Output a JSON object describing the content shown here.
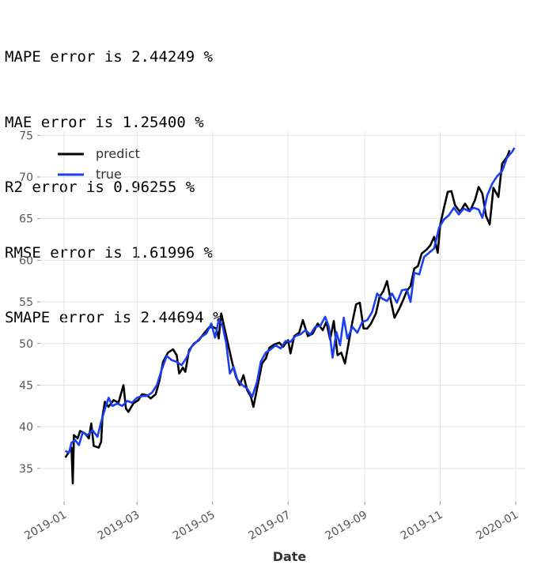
{
  "metrics": [
    "MAPE error is 2.44249 %",
    "MAE error is 1.25400 %",
    "R2 error is 0.96255 %",
    "RMSE error is 1.61996 %",
    "SMAPE error is 2.44694 %"
  ],
  "chart_data": {
    "type": "line",
    "xlabel": "Date",
    "ylabel": "",
    "title": "",
    "xlim": [
      "2019-01-01",
      "2020-01-01"
    ],
    "ylim": [
      31,
      75.5
    ],
    "yticks": [
      35,
      40,
      45,
      50,
      55,
      60,
      65,
      70,
      75
    ],
    "xticks": [
      "2019-01",
      "2019-03",
      "2019-05",
      "2019-07",
      "2019-09",
      "2019-11",
      "2020-01"
    ],
    "grid": true,
    "legend_position": "top-left",
    "series": [
      {
        "name": "predict",
        "color": "#000000",
        "points": [
          [
            "2019-01-02",
            36.3
          ],
          [
            "2019-01-05",
            37.0
          ],
          [
            "2019-01-07",
            37.5
          ],
          [
            "2019-01-08",
            33.2
          ],
          [
            "2019-01-09",
            39.0
          ],
          [
            "2019-01-12",
            38.6
          ],
          [
            "2019-01-14",
            39.5
          ],
          [
            "2019-01-18",
            39.2
          ],
          [
            "2019-01-21",
            38.6
          ],
          [
            "2019-01-23",
            40.4
          ],
          [
            "2019-01-25",
            37.7
          ],
          [
            "2019-01-29",
            37.5
          ],
          [
            "2019-01-31",
            38.2
          ],
          [
            "2019-02-01",
            41.2
          ],
          [
            "2019-02-03",
            43.0
          ],
          [
            "2019-02-06",
            42.4
          ],
          [
            "2019-02-10",
            43.2
          ],
          [
            "2019-02-14",
            42.9
          ],
          [
            "2019-02-18",
            45.0
          ],
          [
            "2019-02-20",
            42.2
          ],
          [
            "2019-02-22",
            41.8
          ],
          [
            "2019-02-26",
            42.8
          ],
          [
            "2019-03-02",
            43.2
          ],
          [
            "2019-03-05",
            43.9
          ],
          [
            "2019-03-09",
            43.8
          ],
          [
            "2019-03-12",
            43.4
          ],
          [
            "2019-03-16",
            43.9
          ],
          [
            "2019-03-19",
            45.5
          ],
          [
            "2019-03-22",
            47.8
          ],
          [
            "2019-03-26",
            48.9
          ],
          [
            "2019-03-30",
            49.3
          ],
          [
            "2019-04-02",
            48.6
          ],
          [
            "2019-04-04",
            46.4
          ],
          [
            "2019-04-07",
            47.1
          ],
          [
            "2019-04-09",
            46.6
          ],
          [
            "2019-04-12",
            49.2
          ],
          [
            "2019-04-16",
            50.0
          ],
          [
            "2019-04-20",
            50.4
          ],
          [
            "2019-04-24",
            51.2
          ],
          [
            "2019-04-28",
            51.9
          ],
          [
            "2019-05-01",
            52.0
          ],
          [
            "2019-05-04",
            51.8
          ],
          [
            "2019-05-06",
            50.6
          ],
          [
            "2019-05-08",
            53.6
          ],
          [
            "2019-05-11",
            51.6
          ],
          [
            "2019-05-14",
            49.6
          ],
          [
            "2019-05-17",
            47.6
          ],
          [
            "2019-05-20",
            46.0
          ],
          [
            "2019-05-23",
            45.0
          ],
          [
            "2019-05-26",
            46.2
          ],
          [
            "2019-05-29",
            44.4
          ],
          [
            "2019-06-01",
            43.6
          ],
          [
            "2019-06-03",
            42.4
          ],
          [
            "2019-06-06",
            44.6
          ],
          [
            "2019-06-10",
            47.6
          ],
          [
            "2019-06-13",
            48.2
          ],
          [
            "2019-06-16",
            49.5
          ],
          [
            "2019-06-20",
            49.9
          ],
          [
            "2019-06-24",
            50.1
          ],
          [
            "2019-06-27",
            49.6
          ],
          [
            "2019-07-01",
            50.4
          ],
          [
            "2019-07-03",
            48.8
          ],
          [
            "2019-07-06",
            50.9
          ],
          [
            "2019-07-10",
            51.3
          ],
          [
            "2019-07-13",
            52.8
          ],
          [
            "2019-07-17",
            50.9
          ],
          [
            "2019-07-21",
            51.2
          ],
          [
            "2019-07-25",
            52.4
          ],
          [
            "2019-07-29",
            51.6
          ],
          [
            "2019-08-01",
            52.6
          ],
          [
            "2019-08-04",
            50.5
          ],
          [
            "2019-08-07",
            52.7
          ],
          [
            "2019-08-10",
            48.6
          ],
          [
            "2019-08-13",
            48.9
          ],
          [
            "2019-08-16",
            47.6
          ],
          [
            "2019-08-19",
            50.1
          ],
          [
            "2019-08-22",
            52.6
          ],
          [
            "2019-08-25",
            54.7
          ],
          [
            "2019-08-28",
            54.9
          ],
          [
            "2019-08-31",
            51.8
          ],
          [
            "2019-09-03",
            51.8
          ],
          [
            "2019-09-06",
            52.4
          ],
          [
            "2019-09-10",
            53.6
          ],
          [
            "2019-09-13",
            55.6
          ],
          [
            "2019-09-16",
            56.3
          ],
          [
            "2019-09-19",
            57.5
          ],
          [
            "2019-09-22",
            55.2
          ],
          [
            "2019-09-25",
            53.1
          ],
          [
            "2019-09-29",
            54.2
          ],
          [
            "2019-10-02",
            55.2
          ],
          [
            "2019-10-05",
            56.3
          ],
          [
            "2019-10-08",
            56.9
          ],
          [
            "2019-10-11",
            59.0
          ],
          [
            "2019-10-14",
            59.3
          ],
          [
            "2019-10-17",
            60.8
          ],
          [
            "2019-10-21",
            61.3
          ],
          [
            "2019-10-24",
            61.8
          ],
          [
            "2019-10-27",
            62.8
          ],
          [
            "2019-10-30",
            60.9
          ],
          [
            "2019-11-01",
            64.3
          ],
          [
            "2019-11-04",
            66.3
          ],
          [
            "2019-11-07",
            68.2
          ],
          [
            "2019-11-10",
            68.3
          ],
          [
            "2019-11-13",
            66.6
          ],
          [
            "2019-11-17",
            65.8
          ],
          [
            "2019-11-21",
            66.8
          ],
          [
            "2019-11-25",
            65.9
          ],
          [
            "2019-11-29",
            67.2
          ],
          [
            "2019-12-02",
            68.8
          ],
          [
            "2019-12-05",
            68.0
          ],
          [
            "2019-12-08",
            65.3
          ],
          [
            "2019-12-11",
            64.3
          ],
          [
            "2019-12-14",
            68.7
          ],
          [
            "2019-12-18",
            67.6
          ],
          [
            "2019-12-21",
            71.6
          ],
          [
            "2019-12-25",
            72.4
          ],
          [
            "2019-12-27",
            73.2
          ]
        ]
      },
      {
        "name": "true",
        "color": "#1a3ff0",
        "points": [
          [
            "2019-01-02",
            37.1
          ],
          [
            "2019-01-05",
            36.9
          ],
          [
            "2019-01-07",
            38.1
          ],
          [
            "2019-01-10",
            38.4
          ],
          [
            "2019-01-13",
            37.8
          ],
          [
            "2019-01-16",
            39.3
          ],
          [
            "2019-01-20",
            39.0
          ],
          [
            "2019-01-24",
            39.6
          ],
          [
            "2019-01-28",
            38.8
          ],
          [
            "2019-01-31",
            40.6
          ],
          [
            "2019-02-03",
            42.1
          ],
          [
            "2019-02-06",
            43.5
          ],
          [
            "2019-02-09",
            42.5
          ],
          [
            "2019-02-13",
            42.8
          ],
          [
            "2019-02-17",
            42.5
          ],
          [
            "2019-02-21",
            43.1
          ],
          [
            "2019-02-25",
            42.9
          ],
          [
            "2019-03-01",
            43.5
          ],
          [
            "2019-03-05",
            43.7
          ],
          [
            "2019-03-09",
            43.7
          ],
          [
            "2019-03-13",
            44.1
          ],
          [
            "2019-03-17",
            45.0
          ],
          [
            "2019-03-21",
            46.9
          ],
          [
            "2019-03-25",
            48.5
          ],
          [
            "2019-03-29",
            48.0
          ],
          [
            "2019-04-02",
            47.8
          ],
          [
            "2019-04-06",
            47.4
          ],
          [
            "2019-04-10",
            48.3
          ],
          [
            "2019-04-14",
            49.6
          ],
          [
            "2019-04-18",
            50.2
          ],
          [
            "2019-04-22",
            50.8
          ],
          [
            "2019-04-26",
            51.2
          ],
          [
            "2019-04-30",
            52.4
          ],
          [
            "2019-05-03",
            50.7
          ],
          [
            "2019-05-06",
            52.8
          ],
          [
            "2019-05-09",
            52.2
          ],
          [
            "2019-05-12",
            50.1
          ],
          [
            "2019-05-15",
            46.4
          ],
          [
            "2019-05-18",
            47.2
          ],
          [
            "2019-05-21",
            45.7
          ],
          [
            "2019-05-25",
            45.0
          ],
          [
            "2019-05-29",
            44.6
          ],
          [
            "2019-06-02",
            43.6
          ],
          [
            "2019-06-06",
            45.4
          ],
          [
            "2019-06-09",
            47.8
          ],
          [
            "2019-06-13",
            48.9
          ],
          [
            "2019-06-17",
            49.3
          ],
          [
            "2019-06-21",
            49.8
          ],
          [
            "2019-06-25",
            49.4
          ],
          [
            "2019-06-29",
            50.3
          ],
          [
            "2019-07-03",
            50.2
          ],
          [
            "2019-07-07",
            50.9
          ],
          [
            "2019-07-11",
            51.1
          ],
          [
            "2019-07-15",
            51.6
          ],
          [
            "2019-07-19",
            51.1
          ],
          [
            "2019-07-23",
            52.0
          ],
          [
            "2019-07-27",
            52.1
          ],
          [
            "2019-07-31",
            53.2
          ],
          [
            "2019-08-03",
            52.0
          ],
          [
            "2019-08-06",
            48.3
          ],
          [
            "2019-08-09",
            51.4
          ],
          [
            "2019-08-12",
            49.8
          ],
          [
            "2019-08-15",
            53.1
          ],
          [
            "2019-08-18",
            50.6
          ],
          [
            "2019-08-22",
            52.0
          ],
          [
            "2019-08-26",
            51.3
          ],
          [
            "2019-08-30",
            52.6
          ],
          [
            "2019-09-03",
            52.8
          ],
          [
            "2019-09-07",
            53.8
          ],
          [
            "2019-09-11",
            56.0
          ],
          [
            "2019-09-15",
            55.4
          ],
          [
            "2019-09-19",
            55.1
          ],
          [
            "2019-09-23",
            56.0
          ],
          [
            "2019-09-27",
            54.9
          ],
          [
            "2019-10-01",
            56.4
          ],
          [
            "2019-10-05",
            56.5
          ],
          [
            "2019-10-08",
            55.0
          ],
          [
            "2019-10-11",
            58.5
          ],
          [
            "2019-10-15",
            58.3
          ],
          [
            "2019-10-19",
            60.4
          ],
          [
            "2019-10-23",
            60.9
          ],
          [
            "2019-10-27",
            61.4
          ],
          [
            "2019-10-31",
            63.9
          ],
          [
            "2019-11-04",
            64.9
          ],
          [
            "2019-11-08",
            65.4
          ],
          [
            "2019-11-12",
            66.3
          ],
          [
            "2019-11-16",
            65.5
          ],
          [
            "2019-11-20",
            66.2
          ],
          [
            "2019-11-24",
            65.9
          ],
          [
            "2019-11-28",
            66.3
          ],
          [
            "2019-12-02",
            66.1
          ],
          [
            "2019-12-05",
            65.1
          ],
          [
            "2019-12-09",
            67.8
          ],
          [
            "2019-12-13",
            69.2
          ],
          [
            "2019-12-17",
            70.1
          ],
          [
            "2019-12-21",
            70.7
          ],
          [
            "2019-12-25",
            72.3
          ],
          [
            "2019-12-29",
            73.0
          ],
          [
            "2019-12-31",
            73.5
          ]
        ]
      }
    ]
  }
}
